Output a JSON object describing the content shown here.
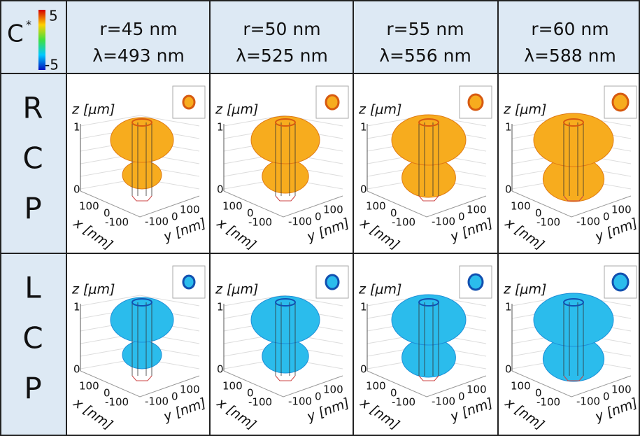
{
  "colorbar": {
    "label": "C",
    "superscript": "*",
    "max": "5",
    "min": "-5"
  },
  "columns": [
    {
      "radius": "r=45 nm",
      "wavelength": "λ=493 nm"
    },
    {
      "radius": "r=50 nm",
      "wavelength": "λ=525 nm"
    },
    {
      "radius": "r=55 nm",
      "wavelength": "λ=556 nm"
    },
    {
      "radius": "r=60 nm",
      "wavelength": "λ=588 nm"
    }
  ],
  "rows": [
    {
      "label": [
        "R",
        "C",
        "P"
      ]
    },
    {
      "label": [
        "L",
        "C",
        "P"
      ]
    }
  ],
  "axes": {
    "z_label": "z [μm]",
    "z_ticks": [
      "1",
      "0"
    ],
    "x_label": "x [nm]",
    "x_ticks": [
      "100",
      "0",
      "-100"
    ],
    "y_label": "y [nm]",
    "y_ticks": [
      "-100",
      "0",
      "100"
    ]
  }
}
